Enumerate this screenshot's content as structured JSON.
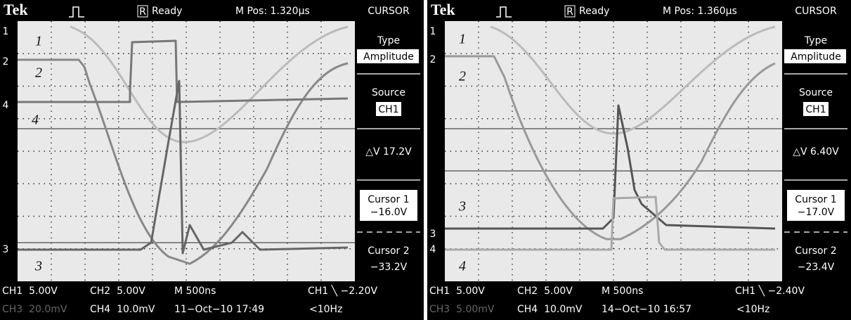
{
  "panels": [
    {
      "header": {
        "brand": "Tek",
        "status_icon": "R",
        "status": "Ready",
        "mpos": "M Pos: 1.320µs",
        "menu_title": "CURSOR"
      },
      "channel_markers": [
        "1",
        "2",
        "4",
        "3"
      ],
      "trace_labels": [
        "1",
        "2",
        "4",
        "3"
      ],
      "menu": {
        "type_label": "Type",
        "type_value": "Amplitude",
        "source_label": "Source",
        "source_value": "CH1",
        "delta": "△V 17.2V",
        "cursor1_label": "Cursor 1",
        "cursor1_value": "−16.0V",
        "cursor2_label": "Cursor 2",
        "cursor2_value": "−33.2V"
      },
      "footer": {
        "ch1": "CH1  5.00V",
        "ch2": "CH2  5.00V",
        "timebase": "M 500ns",
        "trigger": "CH1 ╲ −2.20V",
        "ch3": "CH3  20.0mV",
        "ch4": "CH4  10.0mV",
        "datetime": "11−Oct−10 17:49",
        "freq": "<10Hz"
      }
    },
    {
      "header": {
        "brand": "Tek",
        "status_icon": "R",
        "status": "Ready",
        "mpos": "M Pos: 1.360µs",
        "menu_title": "CURSOR"
      },
      "channel_markers": [
        "1",
        "2",
        "3",
        "4"
      ],
      "trace_labels": [
        "1",
        "2",
        "3",
        "4"
      ],
      "menu": {
        "type_label": "Type",
        "type_value": "Amplitude",
        "source_label": "Source",
        "source_value": "CH1",
        "delta": "△V 6.40V",
        "cursor1_label": "Cursor 1",
        "cursor1_value": "−17.0V",
        "cursor2_label": "Cursor 2",
        "cursor2_value": "−23.4V"
      },
      "footer": {
        "ch1": "CH1  5.00V",
        "ch2": "CH2  5.00V",
        "timebase": "M 500ns",
        "trigger": "CH1 ╲ −2.40V",
        "ch3": "CH3  5.00mV",
        "ch4": "CH4  10.0mV",
        "datetime": "14−Oct−10 16:57",
        "freq": "<10Hz"
      }
    }
  ]
}
